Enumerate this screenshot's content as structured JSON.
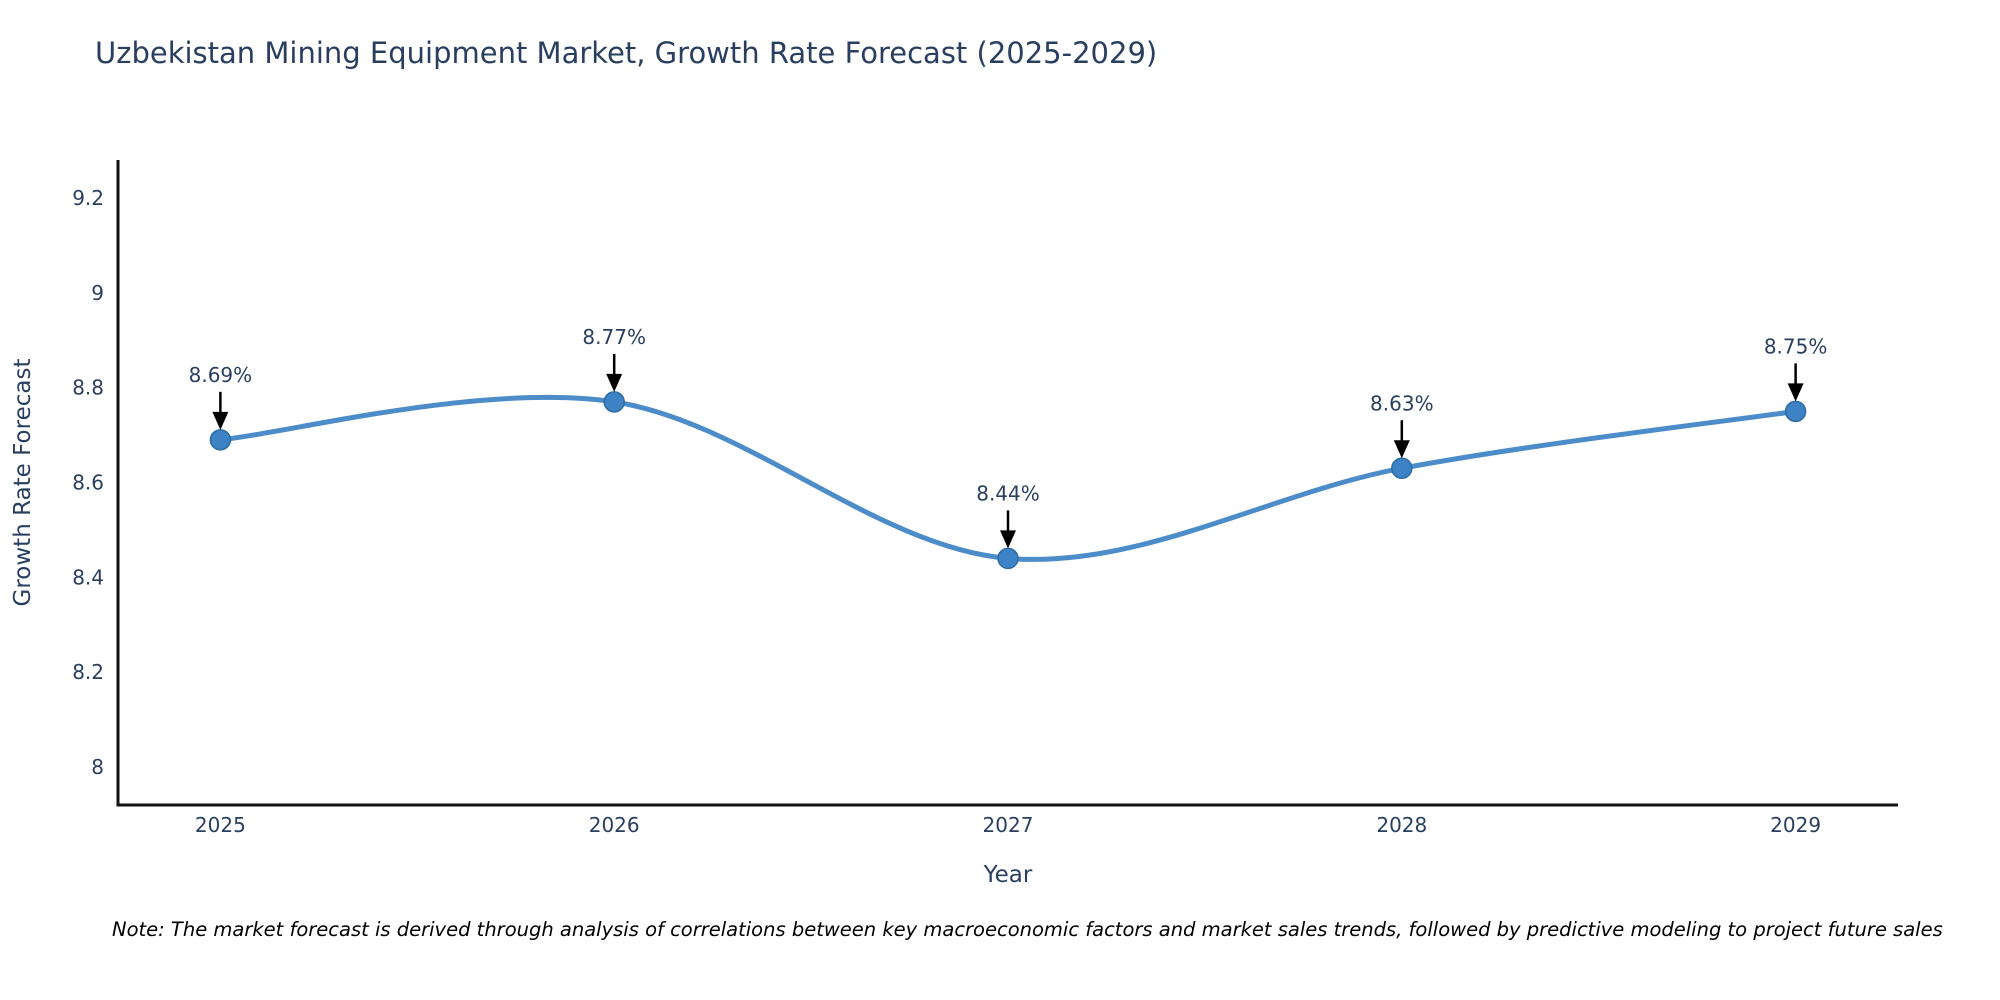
{
  "title": "Uzbekistan Mining Equipment Market, Growth Rate Forecast (2025-2029)",
  "note": {
    "text": "Note: The market forecast is derived through analysis of correlations between key macroeconomic factors and market sales trends, followed by predictive modeling to project future sales"
  },
  "chart_data": {
    "type": "line",
    "title": "Uzbekistan Mining Equipment Market, Growth Rate Forecast (2025-2029)",
    "xlabel": "Year",
    "ylabel": "Growth Rate Forecast",
    "x": [
      2025,
      2026,
      2027,
      2028,
      2029
    ],
    "values": [
      8.69,
      8.77,
      8.44,
      8.63,
      8.75
    ],
    "point_labels": [
      "8.69%",
      "8.77%",
      "8.44%",
      "8.63%",
      "8.75%"
    ],
    "x_tick_labels": [
      "2025",
      "2026",
      "2027",
      "2028",
      "2029"
    ],
    "y_ticks": [
      8,
      8.2,
      8.4,
      8.6,
      8.8,
      9,
      9.2
    ],
    "xlim": [
      2024.74,
      2029.26
    ],
    "ylim": [
      7.92,
      9.28
    ],
    "line_shape": "spline",
    "grid": false,
    "legend": "none",
    "colors": {
      "line": "#3d82c4",
      "marker": "#3d82c4",
      "marker_edge": "#2e6da4",
      "annotation_arrow": "#000000",
      "text": "#2a3f5f",
      "axis_line": "#111111",
      "background": "#ffffff"
    }
  }
}
